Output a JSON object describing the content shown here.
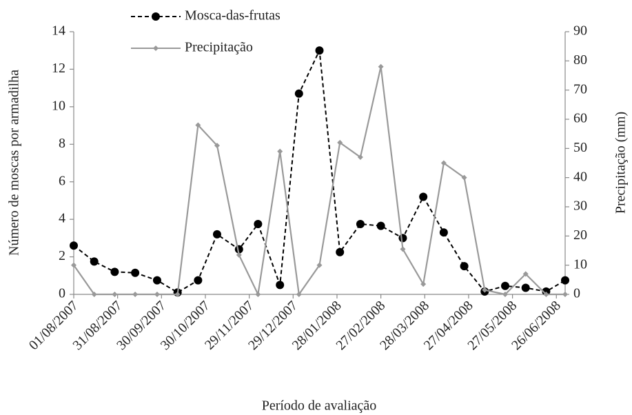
{
  "chart_data": {
    "type": "line",
    "x_label": "Período de avaliação",
    "y_label": "Número de moscas por armadilha",
    "y2_label": "Precipitação (mm)",
    "x": [
      "01/08/2007",
      "15/08/2007",
      "29/08/2007",
      "12/09/2007",
      "27/09/2007",
      "11/10/2007",
      "25/10/2007",
      "07/11/2007",
      "22/11/2007",
      "05/12/2007",
      "20/12/2007",
      "02/01/2008",
      "16/01/2008",
      "30/01/2008",
      "13/02/2008",
      "27/02/2008",
      "13/03/2008",
      "27/03/2008",
      "10/04/2008",
      "24/04/2008",
      "08/05/2008",
      "22/05/2008",
      "05/06/2008",
      "19/06/2008",
      "02/07/2008"
    ],
    "xlim": [
      "01/08/2007",
      "02/07/2008"
    ],
    "xticks": [
      "01/08/2007",
      "31/08/2007",
      "30/09/2007",
      "30/10/2007",
      "29/11/2007",
      "29/12/2007",
      "28/01/2008",
      "27/02/2008",
      "28/03/2008",
      "27/04/2008",
      "27/05/2008",
      "26/06/2008"
    ],
    "ylim": [
      0,
      14
    ],
    "yticks": [
      0,
      2,
      4,
      6,
      8,
      10,
      12,
      14
    ],
    "y2lim": [
      0,
      90
    ],
    "y2ticks": [
      0,
      10,
      20,
      30,
      40,
      50,
      60,
      70,
      80,
      90
    ],
    "series": [
      {
        "name": "Mosca-das-frutas",
        "color": "#000000",
        "axis": "y",
        "marker": "circle",
        "dashed": true,
        "values": [
          2.6,
          1.75,
          1.2,
          1.15,
          0.75,
          0.1,
          0.75,
          3.2,
          2.4,
          3.75,
          0.5,
          10.7,
          13,
          2.25,
          3.75,
          3.65,
          3.0,
          5.2,
          3.3,
          1.5,
          0.15,
          0.45,
          0.35,
          0.15,
          0.75
        ]
      },
      {
        "name": "Precipitação",
        "color": "#999999",
        "axis": "y2",
        "marker": "diamond",
        "dashed": false,
        "values": [
          10,
          0,
          0,
          0,
          0,
          0,
          58,
          51,
          13.5,
          0,
          49,
          0,
          10,
          52,
          47,
          78,
          15.5,
          3.5,
          45,
          40,
          1.5,
          0,
          7,
          0,
          0
        ]
      }
    ]
  }
}
